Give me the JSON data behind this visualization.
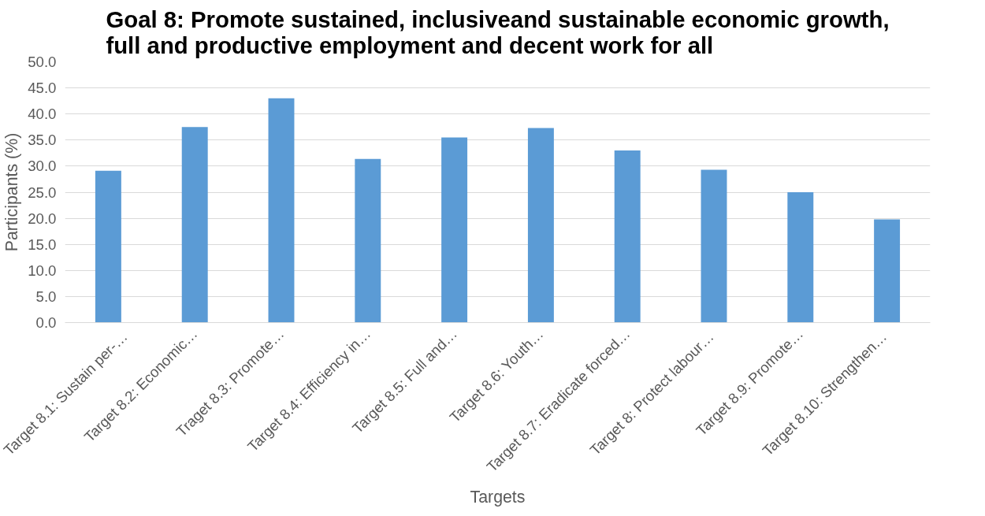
{
  "chart_data": {
    "type": "bar",
    "title": "Goal 8: Promote sustained, inclusiveand sustainable economic growth,\nfull and productive employment and decent work for all",
    "xlabel": "Targets",
    "ylabel": "Participants (%)",
    "categories": [
      "Target 8.1:  Sustain per-…",
      "Target 8.2: Economic…",
      "Traget 8.3: Promote…",
      "Target 8.4: Efficiency in…",
      "Target 8.5: Full and…",
      "Target 8.6: Youth…",
      "Target 8.7: Eradicate forced…",
      "Target 8:  Protect labour…",
      "Target 8.9: Promote…",
      "Target 8.10:  Strengthen…"
    ],
    "values": [
      29.1,
      37.5,
      43.0,
      31.4,
      35.5,
      37.3,
      33.0,
      29.3,
      25.0,
      19.8
    ],
    "color": "#5b9bd5",
    "ylim": [
      0,
      50
    ],
    "yticks": [
      {
        "value": 0,
        "label": "0.0"
      },
      {
        "value": 5,
        "label": "5.0"
      },
      {
        "value": 10,
        "label": "10.0"
      },
      {
        "value": 15,
        "label": "15.0"
      },
      {
        "value": 20,
        "label": "20.0"
      },
      {
        "value": 25,
        "label": "25.0"
      },
      {
        "value": 30,
        "label": "30.0"
      },
      {
        "value": 35,
        "label": "35.0"
      },
      {
        "value": 40,
        "label": "40.0"
      },
      {
        "value": 45,
        "label": "45.0"
      },
      {
        "value": 50,
        "label": "50.0"
      }
    ],
    "grid": "y"
  }
}
